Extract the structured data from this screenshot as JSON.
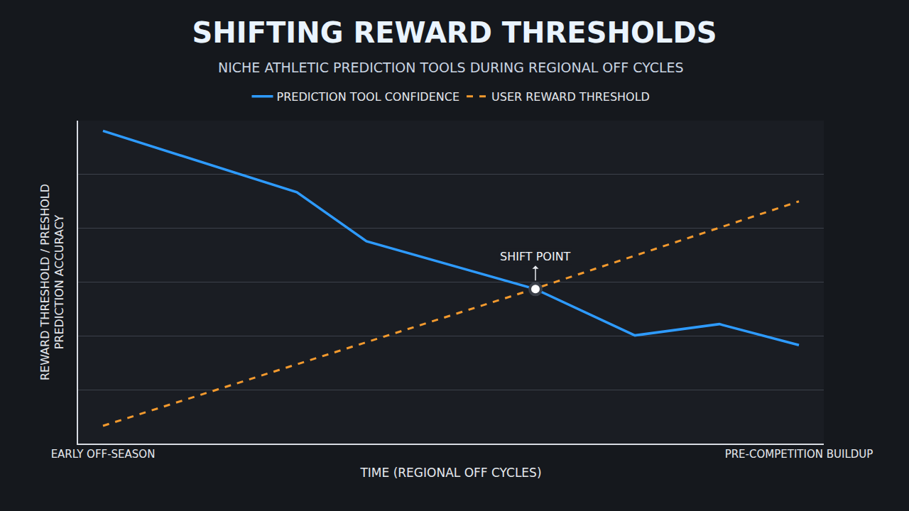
{
  "chart_data": {
    "type": "line",
    "title": "SHIFTING REWARD THRESHOLDS",
    "subtitle": "NICHE ATHLETIC PREDICTION TOOLS DURING REGIONAL OFF CYCLES",
    "x_label": "TIME (REGIONAL OFF CYCLES)",
    "y_label": "REWARD THRESHOLD / PRESHOLD PREDICTION ACCURACY",
    "series": [
      {
        "name": "PREDICTION TOOL CONFIDENCE",
        "color": "#2e9bff",
        "line_style": "solid",
        "x": [
          0,
          3.9,
          5.3,
          8.7,
          10.7,
          12.4,
          14
        ],
        "values": [
          5.81,
          4.67,
          3.76,
          2.87,
          2.01,
          2.22,
          1.83
        ]
      },
      {
        "name": "USER REWARD THRESHOLD",
        "color": "#f39a2e",
        "line_style": "dash",
        "x": [
          0,
          8.7,
          14
        ],
        "values": [
          0.33,
          2.88,
          4.5
        ]
      }
    ],
    "xlim": [
      -0.5,
      14.5
    ],
    "xticks": [
      {
        "value": 0,
        "label": "EARLY OFF-SEASON"
      },
      {
        "value": 14,
        "label": "PRE-COMPETITION BUILDUP"
      }
    ],
    "ylim": [
      0,
      6
    ],
    "yticks": [
      1,
      2,
      3,
      4,
      5,
      6
    ],
    "grid": true,
    "legend": "top",
    "tick_labels": "x",
    "annotations": [
      {
        "text": "SHIFT POINT",
        "x": 8.7,
        "y": 2.87
      }
    ]
  }
}
